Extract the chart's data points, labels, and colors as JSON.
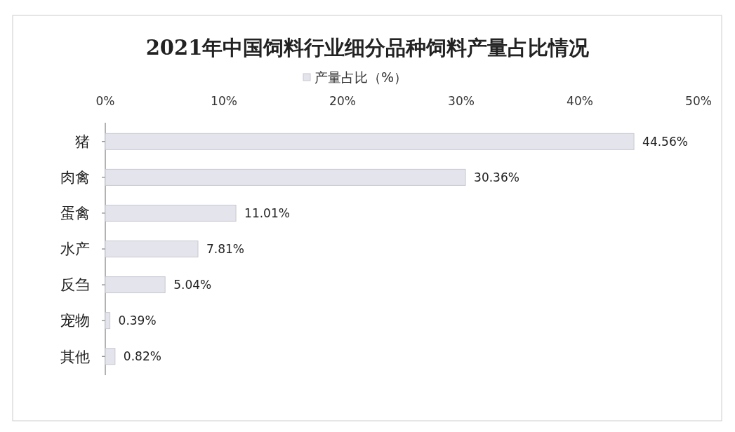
{
  "chart_data": {
    "type": "bar",
    "orientation": "horizontal",
    "title": "2021年中国饲料行业细分品种饲料产量占比情况",
    "categories": [
      "猪",
      "肉禽",
      "蛋禽",
      "水产",
      "反刍",
      "宠物",
      "其他"
    ],
    "series": [
      {
        "name": "产量占比（%）",
        "color": "#e4e4ec",
        "values": [
          44.56,
          30.36,
          11.01,
          7.81,
          5.04,
          0.39,
          0.82
        ],
        "value_labels": [
          "44.56%",
          "30.36%",
          "11.01%",
          "7.81%",
          "5.04%",
          "0.39%",
          "0.82%"
        ]
      }
    ],
    "xlim": [
      0,
      50
    ],
    "xticks": [
      {
        "value": 0,
        "label": "0%"
      },
      {
        "value": 10,
        "label": "10%"
      },
      {
        "value": 20,
        "label": "20%"
      },
      {
        "value": 30,
        "label": "30%"
      },
      {
        "value": 40,
        "label": "40%"
      },
      {
        "value": 50,
        "label": "50%"
      }
    ],
    "legend": "top",
    "grid": false
  }
}
